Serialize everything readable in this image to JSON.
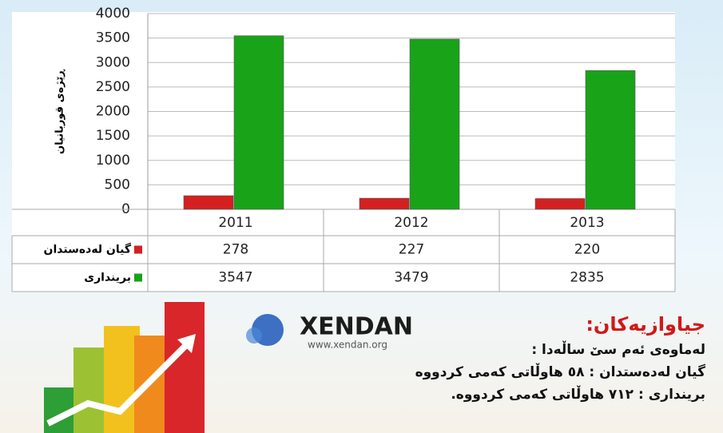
{
  "chart_data": {
    "type": "bar",
    "y_label": "ڕێژەی قوربانیان",
    "categories": [
      "2011",
      "2012",
      "2013"
    ],
    "series": [
      {
        "name": "گیان لەدەستدان",
        "color": "#d42020",
        "values": [
          278,
          227,
          220
        ]
      },
      {
        "name": "بریندارى",
        "color": "#19a319",
        "values": [
          3547,
          3479,
          2835
        ]
      }
    ],
    "ylim": [
      0,
      4000
    ],
    "yticks": [
      0,
      500,
      1000,
      1500,
      2000,
      2500,
      3000,
      3500,
      4000
    ],
    "grid": true
  },
  "logo": {
    "name": "XENDAN",
    "url": "www.xendan.org"
  },
  "notes": {
    "title": "جیاوازیەکان:",
    "lines": [
      "لەماوەی ئەم سێ ساڵەدا :",
      "گیان لەدەستدان : ٥٨ هاوڵاتی کەمی کردووە",
      "بریندارى : ٧١٢ هاوڵاتی کەمی کردووە."
    ]
  }
}
